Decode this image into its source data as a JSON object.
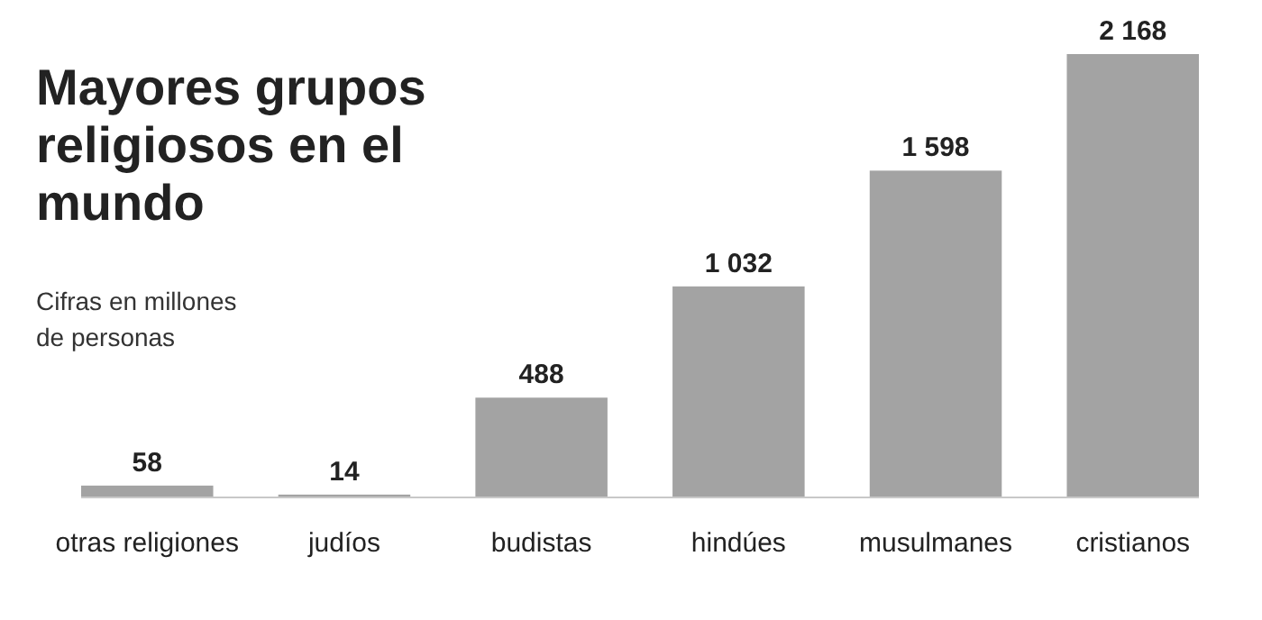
{
  "chart_data": {
    "type": "bar",
    "title": "Mayores grupos religiosos en el mundo",
    "subtitle": "Cifras en millones de personas",
    "categories": [
      "otras religiones",
      "judíos",
      "budistas",
      "hindúes",
      "musulmanes",
      "cristianos"
    ],
    "values": [
      58,
      14,
      488,
      1032,
      1598,
      2168
    ],
    "value_labels": [
      "58",
      "14",
      "488",
      "1 032",
      "1 598",
      "2 168"
    ],
    "color": "#a3a3a3"
  }
}
